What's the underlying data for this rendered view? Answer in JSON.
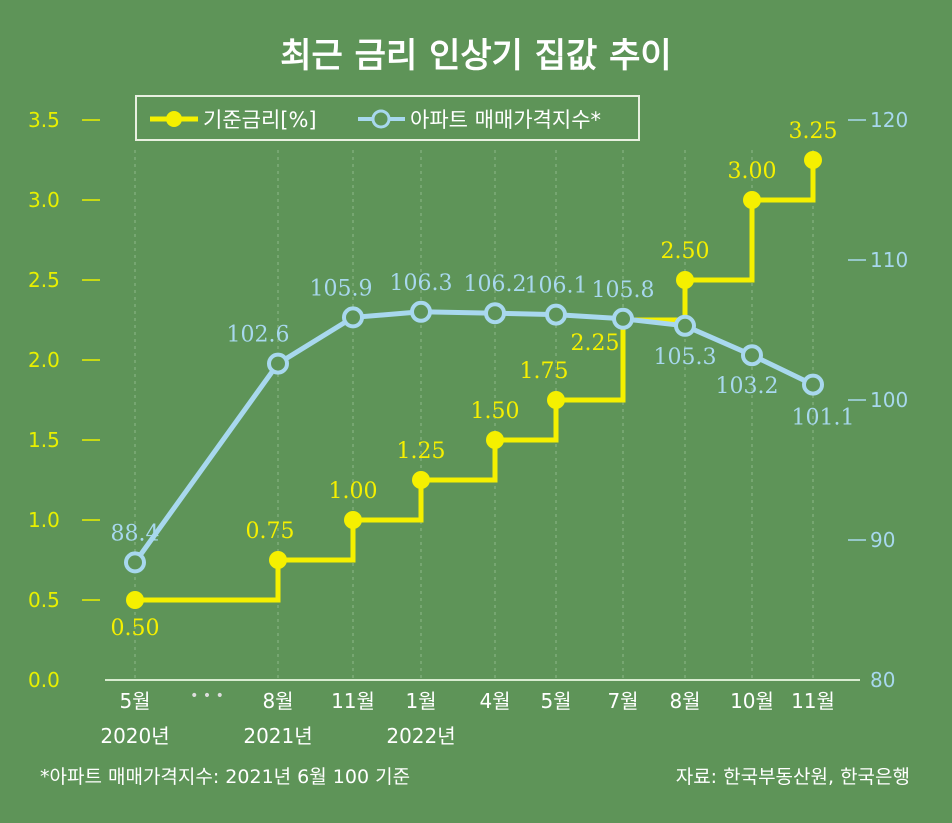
{
  "chart_data": {
    "type": "line",
    "title": "최근 금리 인상기 집값 추이",
    "categories": [
      "5월",
      "8월",
      "11월",
      "1월",
      "4월",
      "5월",
      "7월",
      "8월",
      "10월",
      "11월"
    ],
    "year_labels": [
      {
        "category_index": 0,
        "label": "2020년"
      },
      {
        "category_index": 1,
        "label": "2021년"
      },
      {
        "category_index": 3,
        "label": "2022년"
      }
    ],
    "axis_break_label": "• • •",
    "series": [
      {
        "name": "기준금리[%]",
        "axis": "left",
        "style": "step",
        "color": "#f5f000",
        "values": [
          0.5,
          0.75,
          1.0,
          1.25,
          1.5,
          1.75,
          2.25,
          2.5,
          3.0,
          3.25
        ],
        "labels": [
          "0.50",
          "0.75",
          "1.00",
          "1.25",
          "1.50",
          "1.75",
          "2.25",
          "2.50",
          "3.00",
          "3.25"
        ]
      },
      {
        "name": "아파트 매매가격지수*",
        "axis": "right",
        "style": "line",
        "color": "#a8d8ee",
        "values": [
          88.4,
          102.6,
          105.9,
          106.3,
          106.2,
          106.1,
          105.8,
          105.3,
          103.2,
          101.1
        ],
        "labels": [
          "88.4",
          "102.6",
          "105.9",
          "106.3",
          "106.2",
          "106.1",
          "105.8",
          "105.3",
          "103.2",
          "101.1"
        ]
      }
    ],
    "left_axis": {
      "ylim": [
        0,
        3.5
      ],
      "ticks": [
        "0.0",
        "0.5",
        "1.0",
        "1.5",
        "2.0",
        "2.5",
        "3.0",
        "3.5"
      ],
      "color": "#e8f000"
    },
    "right_axis": {
      "ylim": [
        80,
        120
      ],
      "ticks": [
        "80",
        "90",
        "100",
        "110",
        "120"
      ],
      "color": "#a8d8ee"
    },
    "grid": "vertical dashed",
    "legend_placement": "top"
  },
  "footnote": "*아파트 매매가격지수: 2021년 6월 100 기준",
  "source": "자료: 한국부동산원, 한국은행"
}
